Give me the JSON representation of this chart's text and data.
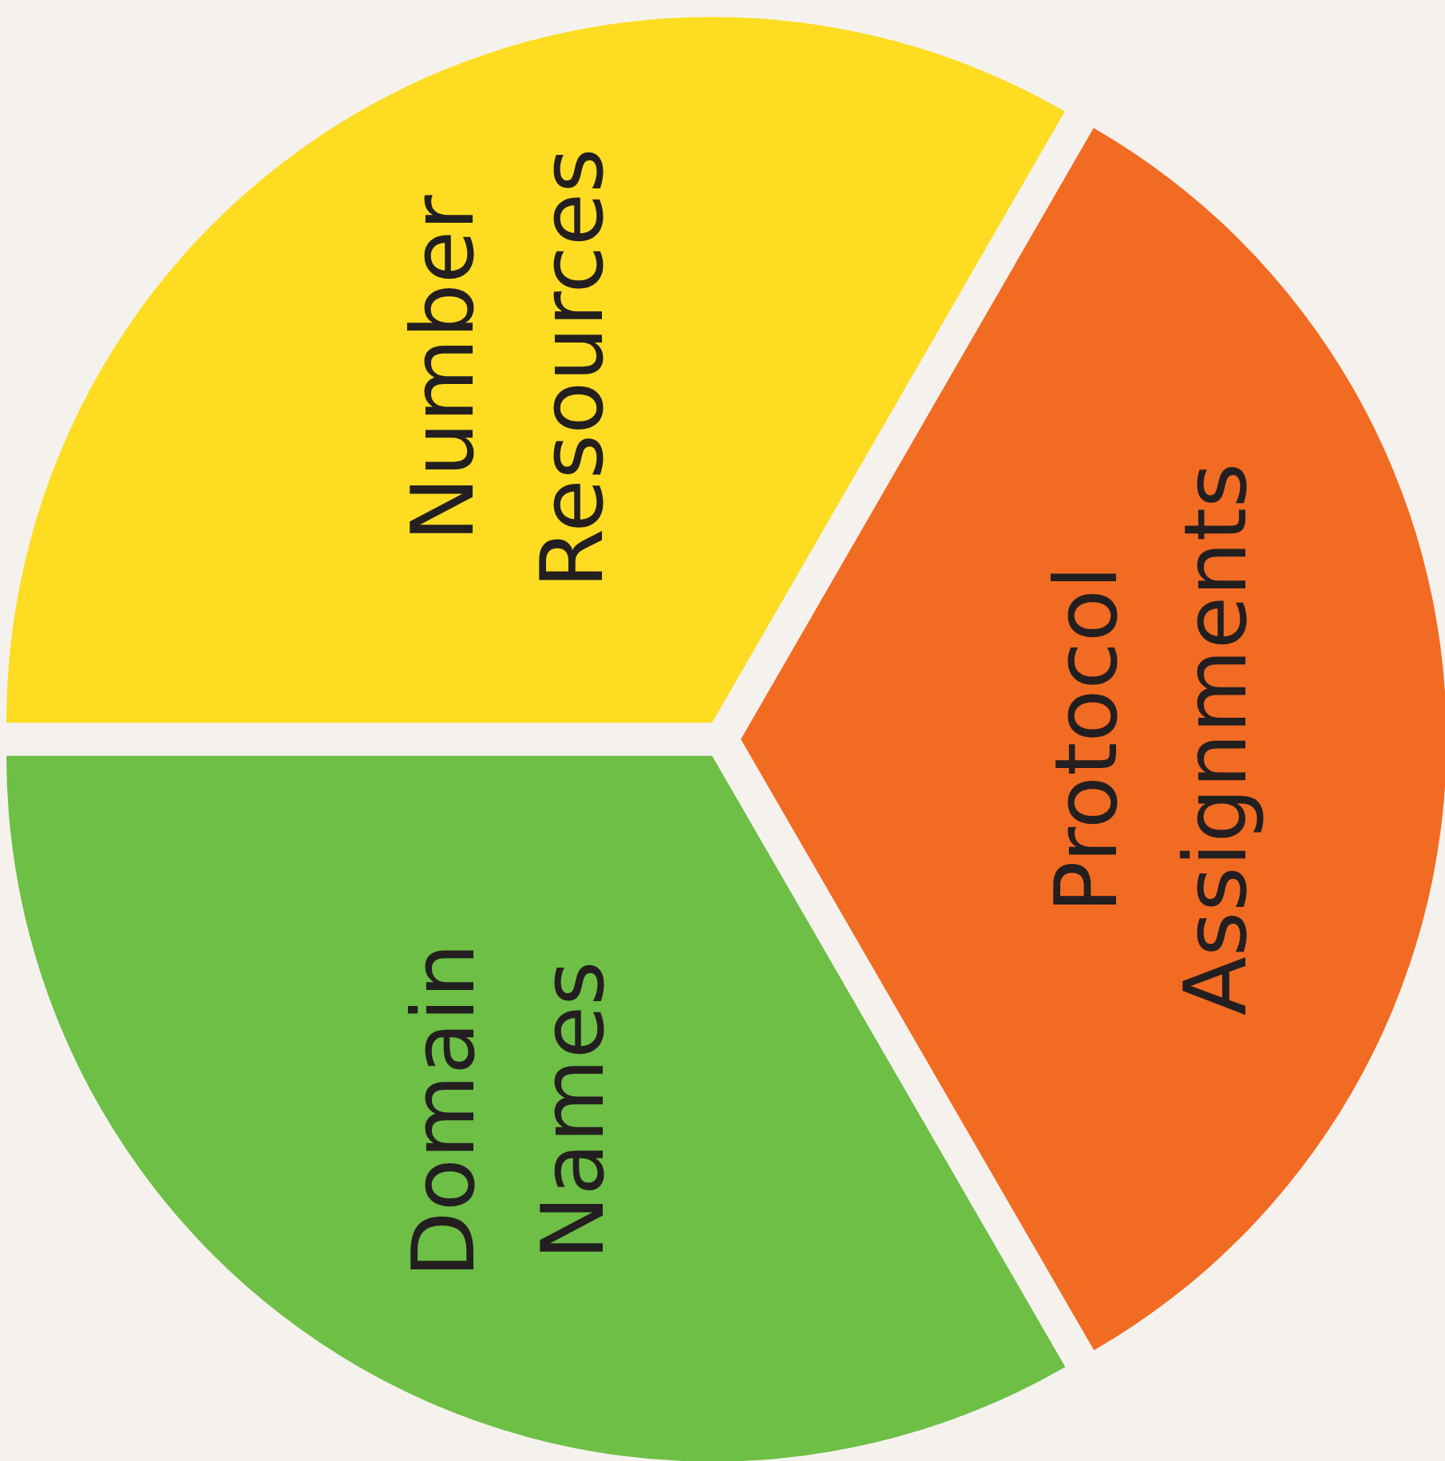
{
  "chart_data": {
    "type": "pie",
    "categories": [
      "Number Resources",
      "Protocol Assignments",
      "Domain Names"
    ],
    "values": [
      33.33,
      33.33,
      33.34
    ],
    "colors": [
      "#fddc22",
      "#f26b23",
      "#6dbf45"
    ]
  }
}
